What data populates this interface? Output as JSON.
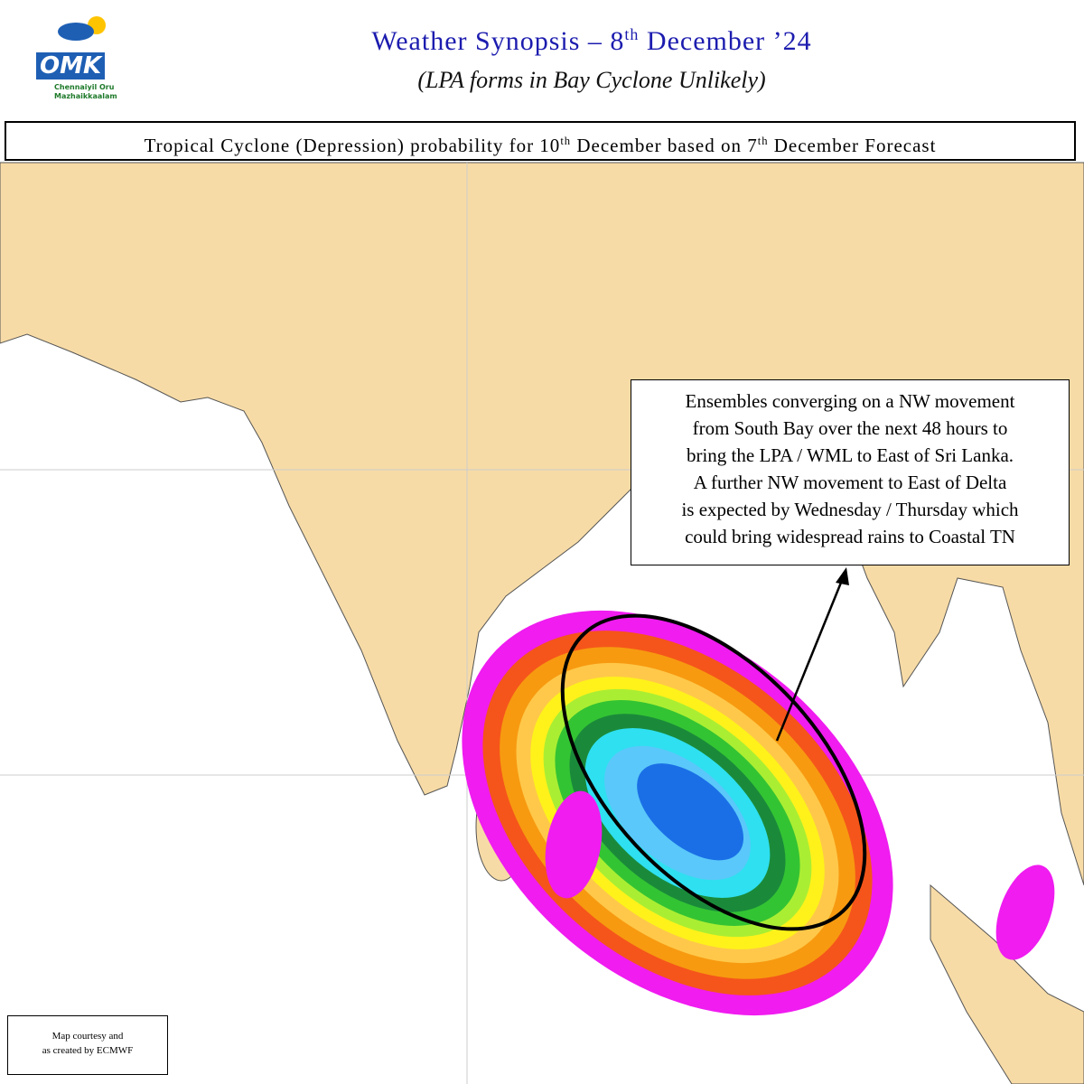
{
  "logo": {
    "initials": "OMK",
    "line1": "Chennaiyil Oru",
    "line2": "Mazhaikkaalam"
  },
  "header": {
    "title_start": "Weather Synopsis – 8",
    "title_sup": "th",
    "title_end": " December ’24",
    "subtitle": "(LPA forms in Bay Cyclone Unlikely)"
  },
  "banner": {
    "part1": "Tropical Cyclone (Depression) probability for 10",
    "sup1": "th",
    "part2": " December based on 7",
    "sup2": "th",
    "part3": " December Forecast"
  },
  "annotation": {
    "lines": [
      "Ensembles converging on a NW movement",
      "from South Bay over the next 48 hours to",
      "bring the LPA / WML to East of Sri Lanka.",
      "A further NW movement to East of Delta",
      "is expected by Wednesday / Thursday which",
      "could bring widespread rains to Coastal TN"
    ]
  },
  "credit": {
    "line1": "Map courtesy and",
    "line2": "as created by ECMWF"
  }
}
